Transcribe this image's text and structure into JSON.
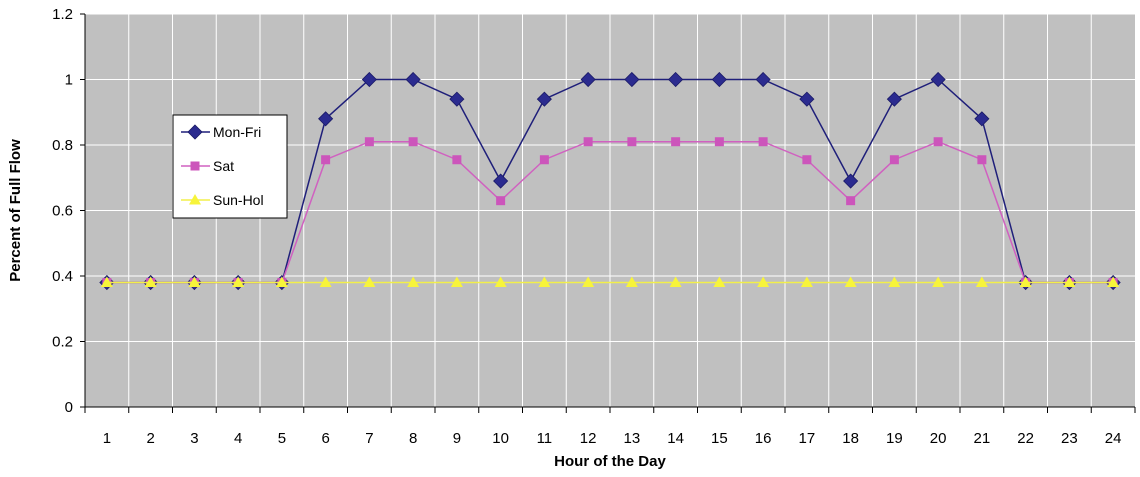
{
  "chart_data": {
    "type": "line",
    "title": "",
    "xlabel": "Hour of the Day",
    "ylabel": "Percent of Full Flow",
    "categories": [
      "1",
      "2",
      "3",
      "4",
      "5",
      "6",
      "7",
      "8",
      "9",
      "10",
      "11",
      "12",
      "13",
      "14",
      "15",
      "16",
      "17",
      "18",
      "19",
      "20",
      "21",
      "22",
      "23",
      "24"
    ],
    "yticks": [
      "0",
      "0.2",
      "0.4",
      "0.6",
      "0.8",
      "1",
      "1.2"
    ],
    "ylim": [
      0,
      1.2
    ],
    "grid": true,
    "legend_position": "left",
    "series": [
      {
        "name": "Mon-Fri",
        "marker": "diamond",
        "color": "#1f1f7a",
        "marker_color": "#2b2b8f",
        "values": [
          0.38,
          0.38,
          0.38,
          0.38,
          0.38,
          0.88,
          1.0,
          1.0,
          0.94,
          0.69,
          0.94,
          1.0,
          1.0,
          1.0,
          1.0,
          1.0,
          0.94,
          0.69,
          0.94,
          1.0,
          0.88,
          0.38,
          0.38,
          0.38
        ]
      },
      {
        "name": "Sat",
        "marker": "square",
        "color": "#d061c0",
        "marker_color": "#cc55bb",
        "values": [
          0.38,
          0.38,
          0.38,
          0.38,
          0.38,
          0.755,
          0.81,
          0.81,
          0.755,
          0.63,
          0.755,
          0.81,
          0.81,
          0.81,
          0.81,
          0.81,
          0.755,
          0.63,
          0.755,
          0.81,
          0.755,
          0.38,
          0.38,
          0.38
        ]
      },
      {
        "name": "Sun-Hol",
        "marker": "triangle",
        "color": "#f2ef4a",
        "marker_color": "#f7f43a",
        "values": [
          0.38,
          0.38,
          0.38,
          0.38,
          0.38,
          0.38,
          0.38,
          0.38,
          0.38,
          0.38,
          0.38,
          0.38,
          0.38,
          0.38,
          0.38,
          0.38,
          0.38,
          0.38,
          0.38,
          0.38,
          0.38,
          0.38,
          0.38,
          0.38
        ]
      }
    ],
    "colors": {
      "plot_background": "#c0c0c0",
      "gridline": "#ffffff",
      "axis": "#000000"
    }
  }
}
